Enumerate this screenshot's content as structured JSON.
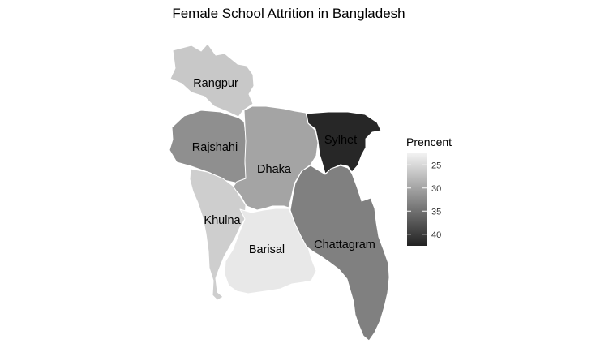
{
  "title": "Female School Attrition in Bangladesh",
  "legend": {
    "title": "Prencent",
    "ticks": [
      "25",
      "30",
      "35",
      "40"
    ],
    "tick_values": [
      25,
      30,
      35,
      40
    ],
    "range": [
      22.5,
      42.5
    ],
    "color_low": "#f2f2f2",
    "color_high": "#222222"
  },
  "regions": [
    {
      "name": "Rangpur",
      "label": "Rangpur",
      "value": 26.5
    },
    {
      "name": "Rajshahi",
      "label": "Rajshahi",
      "value": 32.0
    },
    {
      "name": "Dhaka",
      "label": "Dhaka",
      "value": 30.0
    },
    {
      "name": "Sylhet",
      "label": "Sylhet",
      "value": 42.0
    },
    {
      "name": "Khulna",
      "label": "Khulna",
      "value": 26.0
    },
    {
      "name": "Barisal",
      "label": "Barisal",
      "value": 23.5
    },
    {
      "name": "Chattagram",
      "label": "Chattagram",
      "value": 33.5
    }
  ]
}
